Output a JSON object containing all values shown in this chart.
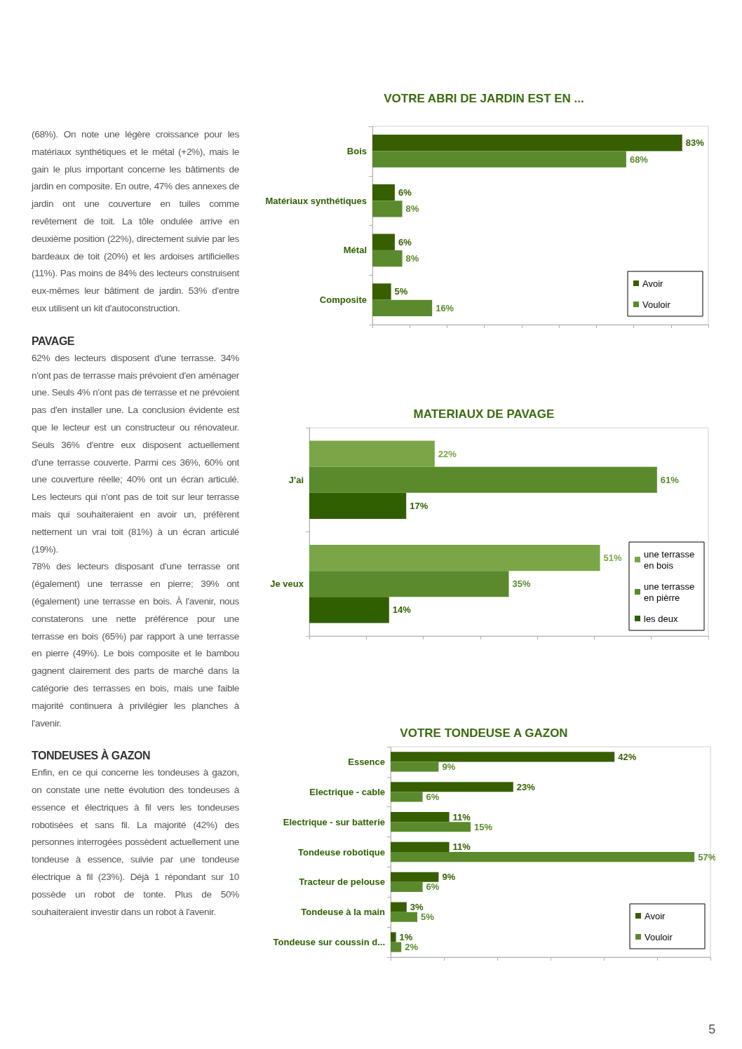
{
  "chart_data": [
    {
      "type": "other",
      "annotations": [
        "(68%). On note une légère croissance pour les matériaux synthétiques et le métal (+2%), mais le gain le plus important concerne les bâtiments de jardin en composite. En outre, 47% des annexes de jardin ont une couverture en tuiles comme revêtement de toit. La tôle ondulée arrive en deuxième position (22%), directement suivie par les bardeaux de toit (20%) et les ardoises artificielles (11%). Pas moins de 84% des lecteurs construisent eux-mêmes leur bâtiment de jardin. 53% d'entre eux utilisent un kit d'autoconstruction."
      ]
    },
    {
      "type": "other",
      "title": "PAVAGE",
      "annotations": [
        "62% des lecteurs disposent d'une terrasse. 34% n'ont pas de terrasse mais prévoient d'en aménager une. Seuls 4% n'ont pas de terrasse et ne prévoient pas d'en installer une. La conclusion évidente est que le lecteur est un constructeur ou rénovateur. Seuls 36% d'entre eux disposent actuellement d'une terrasse couverte. Parmi ces 36%, 60% ont une couverture réelle; 40% ont un écran articulé. Les lecteurs qui n'ont pas de toit sur leur terrasse mais qui souhaiteraient en avoir un, préfèrent nettement un vrai toit (81%) à un écran articulé (19%).",
        "78% des lecteurs disposant d'une terrasse ont (également) une terrasse en pierre; 39% ont (également) une terrasse en bois. À l'avenir, nous constaterons une nette préférence pour une terrasse en bois (65%) par rapport à une terrasse en pierre (49%). Le bois composite et le bambou gagnent clairement des parts de marché dans la catégorie des terrasses en bois, mais une faible majorité continuera à privilégier les planches à l'avenir."
      ]
    },
    {
      "type": "other",
      "title": "TONDEUSES À GAZON",
      "annotations": [
        "Enfin, en ce qui concerne les tondeuses à gazon, on constate une nette évolution des tondeuses à essence et électriques à fil vers les tondeuses robotisées et sans fil. La majorité (42%) des personnes interrogées possèdent actuellement une tondeuse à essence, suivie par une tondeuse électrique à fil (23%). Déjà 1 répondant sur 10 possède un robot de tonte. Plus de 50% souhaiteraient investir dans un robot à l'avenir."
      ]
    },
    {
      "type": "bar",
      "orientation": "horizontal",
      "title": "VOTRE ABRI DE JARDIN EST EN ...",
      "categories": [
        "Bois",
        "Matériaux synthétiques",
        "Métal",
        "Composite"
      ],
      "series": [
        {
          "name": "Avoir",
          "color": "#375f00",
          "values": [
            83,
            6,
            6,
            5
          ],
          "value_labels": [
            "83%",
            "6%",
            "6%",
            "5%"
          ]
        },
        {
          "name": "Vouloir",
          "color": "#5a8a2c",
          "values": [
            68,
            8,
            8,
            16
          ],
          "value_labels": [
            "68%",
            "8%",
            "8%",
            "16%"
          ]
        }
      ],
      "xlim": [
        0,
        90
      ],
      "xticks": [
        {
          "value": 0,
          "label": null
        },
        {
          "value": 10,
          "label": null
        },
        {
          "value": 20,
          "label": null
        },
        {
          "value": 30,
          "label": null
        },
        {
          "value": 40,
          "label": null
        },
        {
          "value": 50,
          "label": null
        },
        {
          "value": 60,
          "label": null
        },
        {
          "value": 70,
          "label": null
        },
        {
          "value": 80,
          "label": null
        },
        {
          "value": 90,
          "label": null
        }
      ],
      "tick_labels": "y",
      "grid": false,
      "legend": "bottom right"
    },
    {
      "type": "bar",
      "orientation": "horizontal",
      "title": "MATERIAUX DE PAVAGE",
      "categories": [
        "J'ai",
        "Je veux"
      ],
      "series": [
        {
          "name": "une terrasse en bois",
          "color": "#7aa647",
          "values": [
            22,
            51
          ],
          "value_labels": [
            "22%",
            "51%"
          ]
        },
        {
          "name": "une terrasse en pièrre",
          "color": "#5a8a2c",
          "values": [
            61,
            35
          ],
          "value_labels": [
            "61%",
            "35%"
          ]
        },
        {
          "name": "les deux",
          "color": "#2f5f00",
          "values": [
            17,
            14
          ],
          "value_labels": [
            "17%",
            "14%"
          ]
        }
      ],
      "xlim": [
        0,
        70
      ],
      "xticks": [
        {
          "value": 0,
          "label": null
        },
        {
          "value": 10,
          "label": null
        },
        {
          "value": 20,
          "label": null
        },
        {
          "value": 30,
          "label": null
        },
        {
          "value": 40,
          "label": null
        },
        {
          "value": 50,
          "label": null
        },
        {
          "value": 60,
          "label": null
        },
        {
          "value": 70,
          "label": null
        }
      ],
      "tick_labels": "y",
      "grid": false,
      "legend": "right"
    },
    {
      "type": "bar",
      "orientation": "horizontal",
      "title": "VOTRE TONDEUSE A GAZON",
      "categories": [
        "Essence",
        "Electrique - cable",
        "Electrique - sur batterie",
        "Tondeuse robotique",
        "Tracteur de pelouse",
        "Tondeuse à la main",
        "Tondeuse sur coussin d..."
      ],
      "series": [
        {
          "name": "Avoir",
          "color": "#375f00",
          "values": [
            42,
            23,
            11,
            11,
            9,
            3,
            1
          ],
          "value_labels": [
            "42%",
            "23%",
            "11%",
            "11%",
            "9%",
            "3%",
            "1%"
          ]
        },
        {
          "name": "Vouloir",
          "color": "#5a8a2c",
          "values": [
            9,
            6,
            15,
            57,
            6,
            5,
            2
          ],
          "value_labels": [
            "9%",
            "6%",
            "15%",
            "57%",
            "6%",
            "5%",
            "2%"
          ]
        }
      ],
      "xlim": [
        0,
        60
      ],
      "xticks": [
        {
          "value": 0,
          "label": null
        },
        {
          "value": 10,
          "label": null
        },
        {
          "value": 20,
          "label": null
        },
        {
          "value": 30,
          "label": null
        },
        {
          "value": 40,
          "label": null
        },
        {
          "value": 50,
          "label": null
        },
        {
          "value": 60,
          "label": null
        }
      ],
      "tick_labels": "y",
      "grid": false,
      "legend": "bottom right"
    },
    {
      "type": "other",
      "annotations": [
        "5"
      ]
    }
  ]
}
